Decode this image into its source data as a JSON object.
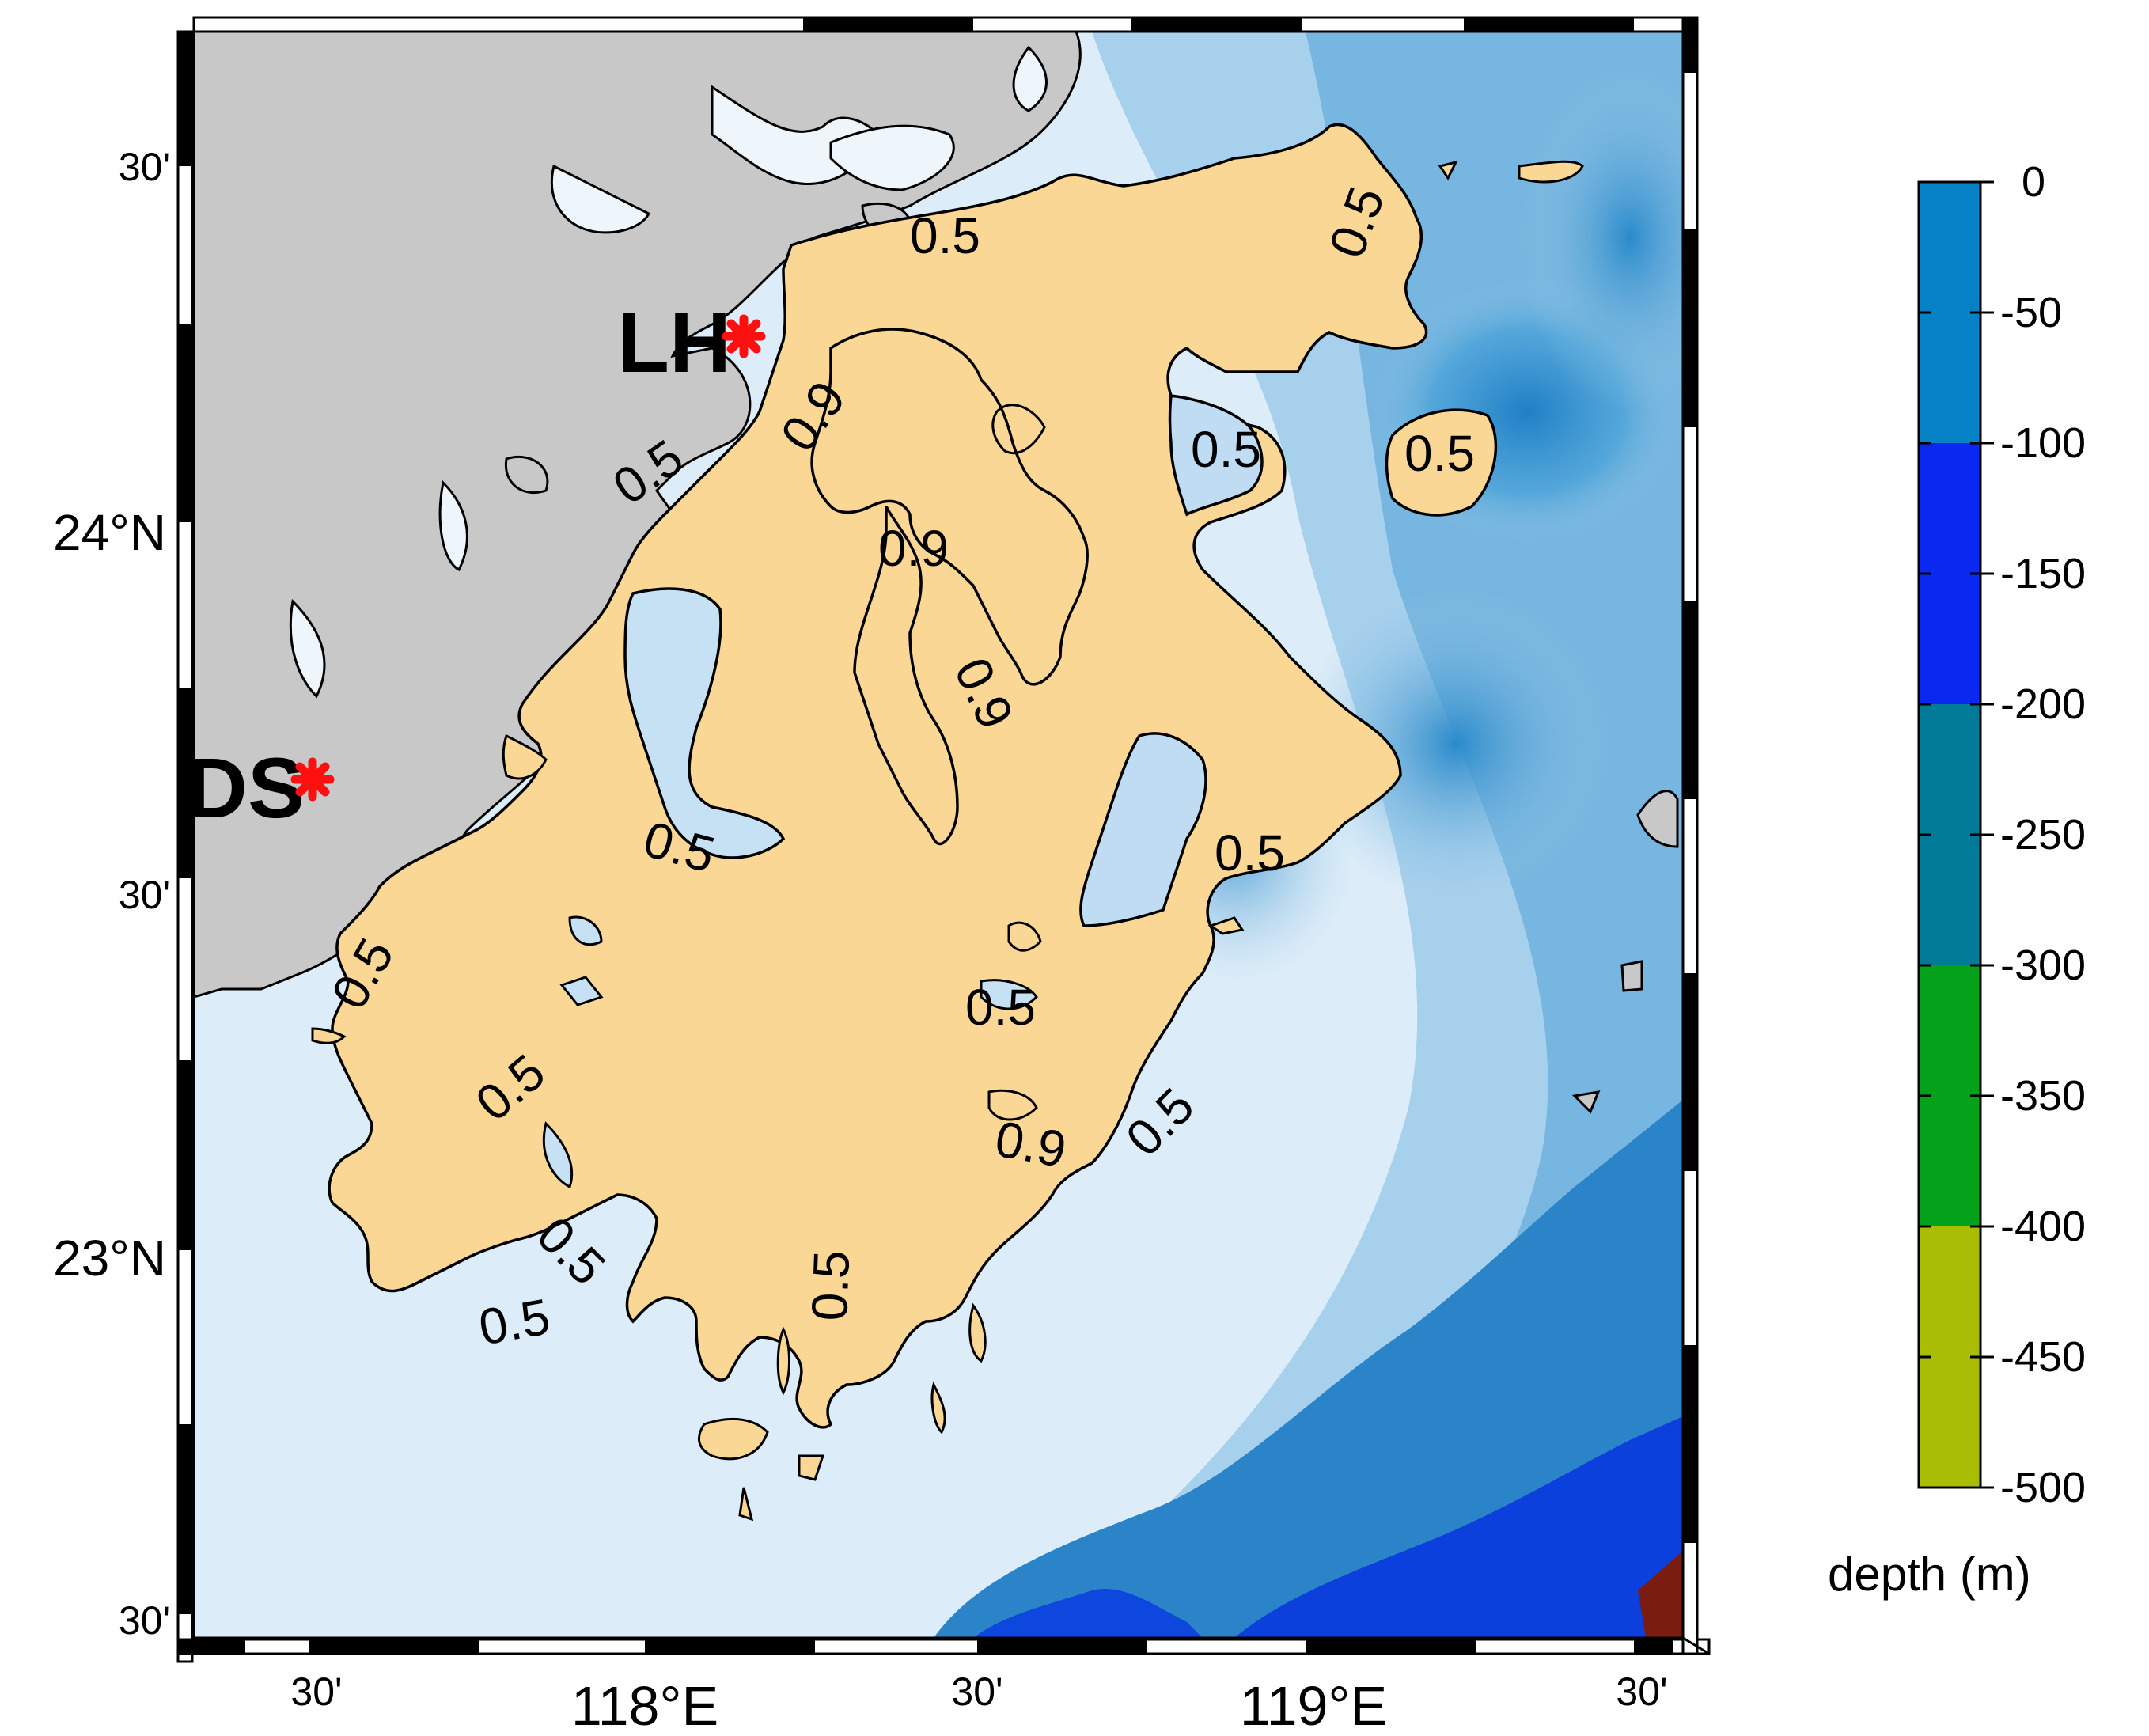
{
  "map": {
    "lat_ticks": [
      "30'",
      "24°N",
      "30'",
      "23°N",
      "30'"
    ],
    "lon_ticks": [
      "30'",
      "118°E",
      "30'",
      "119°E",
      "30'"
    ],
    "stations": [
      {
        "id": "LH",
        "label": "LH",
        "lon": 118.14,
        "lat": 24.27
      },
      {
        "id": "DS",
        "label": "DS",
        "lon": 117.52,
        "lat": 23.66
      }
    ],
    "contour_labels": [
      {
        "text": "0.5"
      },
      {
        "text": "0.5"
      },
      {
        "text": "0.9"
      },
      {
        "text": "0.5"
      },
      {
        "text": "0.5"
      },
      {
        "text": "0.5"
      },
      {
        "text": "0.9"
      },
      {
        "text": "0.9"
      },
      {
        "text": "0.5"
      },
      {
        "text": "0.5"
      },
      {
        "text": "0.5"
      },
      {
        "text": "0.5"
      },
      {
        "text": "0.5"
      },
      {
        "text": "0.5"
      },
      {
        "text": "0.9"
      },
      {
        "text": "0.5"
      },
      {
        "text": "0.5"
      },
      {
        "text": "0.5"
      }
    ],
    "colors": {
      "land": "#c8c8c8",
      "region_fill": "#fbd796",
      "sea_shallow": "#dfeef8",
      "sea_mid": "#8fc4e4",
      "sea_deep": "#2d8bcc",
      "sea_abyss": "#0a3ee0",
      "station_marker": "#ff1010"
    }
  },
  "colorbar": {
    "title": "depth (m)",
    "ticks": [
      "0",
      "-50",
      "-100",
      "-150",
      "-200",
      "-250",
      "-300",
      "-350",
      "-400",
      "-450",
      "-500"
    ],
    "bands": [
      {
        "range": "0 to -100",
        "color": "#0582c6"
      },
      {
        "range": "-100 to -200",
        "color": "#0928f0"
      },
      {
        "range": "-200 to -300",
        "color": "#017a98"
      },
      {
        "range": "-300 to -400",
        "color": "#04a11a"
      },
      {
        "range": "-400 to -500",
        "color": "#a8bd04"
      }
    ]
  }
}
